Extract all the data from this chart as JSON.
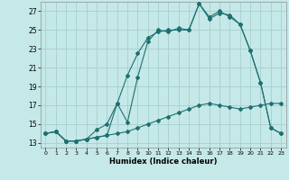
{
  "xlabel": "Humidex (Indice chaleur)",
  "background_color": "#c5e8e8",
  "grid_color": "#a8cece",
  "line_color": "#1e7070",
  "xlim": [
    -0.5,
    23.5
  ],
  "ylim": [
    12.5,
    28.0
  ],
  "yticks": [
    13,
    15,
    17,
    19,
    21,
    23,
    25,
    27
  ],
  "xticks": [
    0,
    1,
    2,
    3,
    4,
    5,
    6,
    7,
    8,
    9,
    10,
    11,
    12,
    13,
    14,
    15,
    16,
    17,
    18,
    19,
    20,
    21,
    22,
    23
  ],
  "line1_x": [
    0,
    1,
    2,
    3,
    4,
    5,
    6,
    7,
    8,
    9,
    10,
    11,
    12,
    13,
    14,
    15,
    16,
    17,
    18,
    19,
    20,
    21,
    22,
    23
  ],
  "line1_y": [
    14.0,
    14.2,
    13.2,
    13.2,
    13.4,
    13.6,
    13.8,
    14.0,
    14.2,
    14.6,
    15.0,
    15.4,
    15.8,
    16.2,
    16.6,
    17.0,
    17.2,
    17.0,
    16.8,
    16.6,
    16.8,
    17.0,
    17.2,
    17.2
  ],
  "line2_x": [
    0,
    1,
    2,
    3,
    4,
    5,
    6,
    7,
    8,
    9,
    10,
    11,
    12,
    13,
    14,
    15,
    16,
    17,
    18,
    19,
    20,
    21,
    22,
    23
  ],
  "line2_y": [
    14.0,
    14.2,
    13.2,
    13.2,
    13.4,
    13.6,
    13.8,
    17.2,
    20.2,
    22.5,
    24.2,
    24.8,
    25.0,
    25.0,
    25.0,
    27.8,
    26.2,
    26.8,
    26.6,
    25.6,
    22.8,
    19.4,
    14.6,
    14.0
  ],
  "line3_x": [
    0,
    1,
    2,
    3,
    4,
    5,
    6,
    7,
    8,
    9,
    10,
    11,
    12,
    13,
    14,
    15,
    16,
    17,
    18,
    19,
    20,
    21,
    22,
    23
  ],
  "line3_y": [
    14.0,
    14.2,
    13.2,
    13.2,
    13.4,
    14.4,
    15.0,
    17.2,
    15.2,
    20.0,
    23.8,
    25.0,
    24.8,
    25.2,
    25.0,
    27.8,
    26.4,
    27.0,
    26.4,
    25.6,
    22.8,
    19.4,
    14.6,
    14.0
  ]
}
